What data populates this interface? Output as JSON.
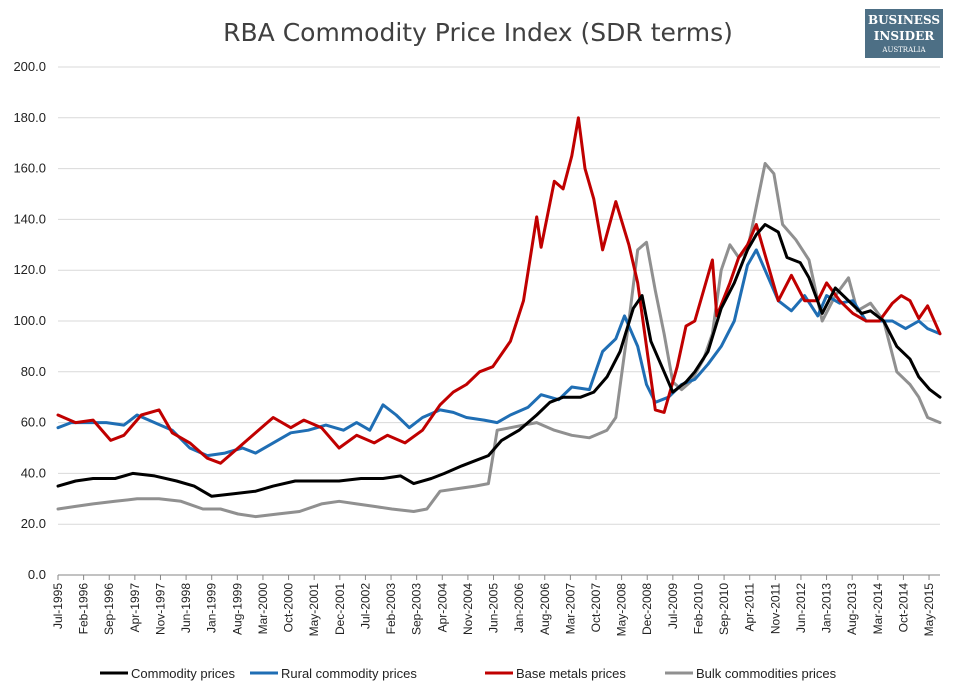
{
  "logo": {
    "line1": "BUSINESS",
    "line2": "INSIDER",
    "line3": "AUSTRALIA"
  },
  "chart_data": {
    "type": "line",
    "title": "RBA Commodity Price Index (SDR terms)",
    "xlabel": "",
    "ylabel": "",
    "ylim": [
      0,
      200
    ],
    "yticks": [
      "0.0",
      "20.0",
      "40.0",
      "60.0",
      "80.0",
      "100.0",
      "120.0",
      "140.0",
      "160.0",
      "180.0",
      "200.0"
    ],
    "xlim": [
      1995.5,
      2015.583
    ],
    "x_tick_labels": [
      "Jul-1995",
      "Feb-1996",
      "Sep-1996",
      "Apr-1997",
      "Nov-1997",
      "Jun-1998",
      "Jan-1999",
      "Aug-1999",
      "Mar-2000",
      "Oct-2000",
      "May-2001",
      "Dec-2001",
      "Jul-2002",
      "Feb-2003",
      "Sep-2003",
      "Apr-2004",
      "Nov-2004",
      "Jun-2005",
      "Jan-2006",
      "Aug-2006",
      "Mar-2007",
      "Oct-2007",
      "May-2008",
      "Dec-2008",
      "Jul-2009",
      "Feb-2010",
      "Sep-2010",
      "Apr-2011",
      "Nov-2011",
      "Jun-2012",
      "Jan-2013",
      "Aug-2013",
      "Mar-2014",
      "Oct-2014",
      "May-2015"
    ],
    "grid": true,
    "legend_position": "bottom",
    "series": [
      {
        "name": "Commodity prices",
        "color": "#000000",
        "points": [
          [
            1995.5,
            35
          ],
          [
            1995.9,
            37
          ],
          [
            1996.3,
            38
          ],
          [
            1996.8,
            38
          ],
          [
            1997.2,
            40
          ],
          [
            1997.7,
            39
          ],
          [
            1998.2,
            37
          ],
          [
            1998.6,
            35
          ],
          [
            1999.0,
            31
          ],
          [
            1999.5,
            32
          ],
          [
            2000.0,
            33
          ],
          [
            2000.4,
            35
          ],
          [
            2000.9,
            37
          ],
          [
            2001.4,
            37
          ],
          [
            2001.9,
            37
          ],
          [
            2002.4,
            38
          ],
          [
            2002.9,
            38
          ],
          [
            2003.3,
            39
          ],
          [
            2003.6,
            36
          ],
          [
            2004.0,
            38
          ],
          [
            2004.3,
            40
          ],
          [
            2004.7,
            43
          ],
          [
            2005.0,
            45
          ],
          [
            2005.3,
            47
          ],
          [
            2005.6,
            53
          ],
          [
            2006.0,
            57
          ],
          [
            2006.4,
            63
          ],
          [
            2006.7,
            68
          ],
          [
            2007.0,
            70
          ],
          [
            2007.4,
            70
          ],
          [
            2007.7,
            72
          ],
          [
            2008.0,
            78
          ],
          [
            2008.3,
            88
          ],
          [
            2008.6,
            105
          ],
          [
            2008.8,
            110
          ],
          [
            2009.0,
            92
          ],
          [
            2009.3,
            80
          ],
          [
            2009.5,
            72
          ],
          [
            2009.8,
            76
          ],
          [
            2010.0,
            80
          ],
          [
            2010.3,
            88
          ],
          [
            2010.6,
            105
          ],
          [
            2010.9,
            115
          ],
          [
            2011.2,
            128
          ],
          [
            2011.4,
            134
          ],
          [
            2011.6,
            138
          ],
          [
            2011.9,
            135
          ],
          [
            2012.1,
            125
          ],
          [
            2012.4,
            123
          ],
          [
            2012.6,
            117
          ],
          [
            2012.9,
            103
          ],
          [
            2013.2,
            113
          ],
          [
            2013.5,
            108
          ],
          [
            2013.8,
            103
          ],
          [
            2014.0,
            104
          ],
          [
            2014.3,
            100
          ],
          [
            2014.6,
            90
          ],
          [
            2014.9,
            85
          ],
          [
            2015.1,
            78
          ],
          [
            2015.35,
            73
          ],
          [
            2015.583,
            70
          ]
        ]
      },
      {
        "name": "Rural commodity prices",
        "color": "#1f6eb4",
        "points": [
          [
            1995.5,
            58
          ],
          [
            1995.8,
            60
          ],
          [
            1996.2,
            60
          ],
          [
            1996.6,
            60
          ],
          [
            1997.0,
            59
          ],
          [
            1997.3,
            63
          ],
          [
            1997.7,
            60
          ],
          [
            1998.1,
            57
          ],
          [
            1998.5,
            50
          ],
          [
            1998.9,
            47
          ],
          [
            1999.3,
            48
          ],
          [
            1999.7,
            50
          ],
          [
            2000.0,
            48
          ],
          [
            2000.4,
            52
          ],
          [
            2000.8,
            56
          ],
          [
            2001.2,
            57
          ],
          [
            2001.6,
            59
          ],
          [
            2002.0,
            57
          ],
          [
            2002.3,
            60
          ],
          [
            2002.6,
            57
          ],
          [
            2002.9,
            67
          ],
          [
            2003.2,
            63
          ],
          [
            2003.5,
            58
          ],
          [
            2003.8,
            62
          ],
          [
            2004.2,
            65
          ],
          [
            2004.5,
            64
          ],
          [
            2004.8,
            62
          ],
          [
            2005.2,
            61
          ],
          [
            2005.5,
            60
          ],
          [
            2005.8,
            63
          ],
          [
            2006.2,
            66
          ],
          [
            2006.5,
            71
          ],
          [
            2006.9,
            69
          ],
          [
            2007.2,
            74
          ],
          [
            2007.6,
            73
          ],
          [
            2007.9,
            88
          ],
          [
            2008.2,
            93
          ],
          [
            2008.4,
            102
          ],
          [
            2008.7,
            90
          ],
          [
            2008.9,
            75
          ],
          [
            2009.1,
            68
          ],
          [
            2009.4,
            70
          ],
          [
            2009.7,
            75
          ],
          [
            2010.0,
            77
          ],
          [
            2010.3,
            83
          ],
          [
            2010.6,
            90
          ],
          [
            2010.9,
            100
          ],
          [
            2011.2,
            122
          ],
          [
            2011.4,
            128
          ],
          [
            2011.6,
            120
          ],
          [
            2011.9,
            108
          ],
          [
            2012.2,
            104
          ],
          [
            2012.5,
            110
          ],
          [
            2012.8,
            102
          ],
          [
            2013.0,
            110
          ],
          [
            2013.3,
            107
          ],
          [
            2013.6,
            108
          ],
          [
            2013.9,
            100
          ],
          [
            2014.2,
            100
          ],
          [
            2014.5,
            100
          ],
          [
            2014.8,
            97
          ],
          [
            2015.1,
            100
          ],
          [
            2015.3,
            97
          ],
          [
            2015.583,
            95
          ]
        ]
      },
      {
        "name": "Base metals prices",
        "color": "#c00000",
        "points": [
          [
            1995.5,
            63
          ],
          [
            1995.9,
            60
          ],
          [
            1996.3,
            61
          ],
          [
            1996.7,
            53
          ],
          [
            1997.0,
            55
          ],
          [
            1997.4,
            63
          ],
          [
            1997.8,
            65
          ],
          [
            1998.1,
            56
          ],
          [
            1998.5,
            52
          ],
          [
            1998.9,
            46
          ],
          [
            1999.2,
            44
          ],
          [
            1999.6,
            50
          ],
          [
            2000.0,
            56
          ],
          [
            2000.4,
            62
          ],
          [
            2000.8,
            58
          ],
          [
            2001.1,
            61
          ],
          [
            2001.5,
            58
          ],
          [
            2001.9,
            50
          ],
          [
            2002.3,
            55
          ],
          [
            2002.7,
            52
          ],
          [
            2003.0,
            55
          ],
          [
            2003.4,
            52
          ],
          [
            2003.8,
            57
          ],
          [
            2004.2,
            67
          ],
          [
            2004.5,
            72
          ],
          [
            2004.8,
            75
          ],
          [
            2005.1,
            80
          ],
          [
            2005.4,
            82
          ],
          [
            2005.8,
            92
          ],
          [
            2006.1,
            108
          ],
          [
            2006.4,
            141
          ],
          [
            2006.5,
            129
          ],
          [
            2006.8,
            155
          ],
          [
            2007.0,
            152
          ],
          [
            2007.2,
            165
          ],
          [
            2007.35,
            180
          ],
          [
            2007.5,
            160
          ],
          [
            2007.7,
            148
          ],
          [
            2007.9,
            128
          ],
          [
            2008.2,
            147
          ],
          [
            2008.5,
            130
          ],
          [
            2008.7,
            115
          ],
          [
            2008.9,
            90
          ],
          [
            2009.1,
            65
          ],
          [
            2009.3,
            64
          ],
          [
            2009.6,
            82
          ],
          [
            2009.8,
            98
          ],
          [
            2010.0,
            100
          ],
          [
            2010.2,
            112
          ],
          [
            2010.4,
            124
          ],
          [
            2010.5,
            102
          ],
          [
            2010.8,
            115
          ],
          [
            2011.0,
            125
          ],
          [
            2011.2,
            130
          ],
          [
            2011.4,
            138
          ],
          [
            2011.6,
            126
          ],
          [
            2011.9,
            108
          ],
          [
            2012.2,
            118
          ],
          [
            2012.5,
            108
          ],
          [
            2012.8,
            108
          ],
          [
            2013.0,
            115
          ],
          [
            2013.3,
            108
          ],
          [
            2013.6,
            103
          ],
          [
            2013.9,
            100
          ],
          [
            2014.2,
            100
          ],
          [
            2014.5,
            107
          ],
          [
            2014.7,
            110
          ],
          [
            2014.9,
            108
          ],
          [
            2015.1,
            101
          ],
          [
            2015.3,
            106
          ],
          [
            2015.583,
            95
          ]
        ]
      },
      {
        "name": "Bulk commodities prices",
        "color": "#909090",
        "points": [
          [
            1995.5,
            26
          ],
          [
            1995.9,
            27
          ],
          [
            1996.3,
            28
          ],
          [
            1996.8,
            29
          ],
          [
            1997.3,
            30
          ],
          [
            1997.8,
            30
          ],
          [
            1998.3,
            29
          ],
          [
            1998.8,
            26
          ],
          [
            1999.2,
            26
          ],
          [
            1999.6,
            24
          ],
          [
            2000.0,
            23
          ],
          [
            2000.5,
            24
          ],
          [
            2001.0,
            25
          ],
          [
            2001.5,
            28
          ],
          [
            2001.9,
            29
          ],
          [
            2002.3,
            28
          ],
          [
            2002.7,
            27
          ],
          [
            2003.1,
            26
          ],
          [
            2003.6,
            25
          ],
          [
            2003.9,
            26
          ],
          [
            2004.2,
            33
          ],
          [
            2004.6,
            34
          ],
          [
            2005.0,
            35
          ],
          [
            2005.3,
            36
          ],
          [
            2005.5,
            57
          ],
          [
            2005.8,
            58
          ],
          [
            2006.1,
            59
          ],
          [
            2006.4,
            60
          ],
          [
            2006.8,
            57
          ],
          [
            2007.2,
            55
          ],
          [
            2007.6,
            54
          ],
          [
            2008.0,
            57
          ],
          [
            2008.2,
            62
          ],
          [
            2008.5,
            100
          ],
          [
            2008.7,
            128
          ],
          [
            2008.9,
            131
          ],
          [
            2009.1,
            112
          ],
          [
            2009.3,
            95
          ],
          [
            2009.5,
            76
          ],
          [
            2009.7,
            73
          ],
          [
            2009.9,
            76
          ],
          [
            2010.2,
            85
          ],
          [
            2010.4,
            95
          ],
          [
            2010.6,
            120
          ],
          [
            2010.8,
            130
          ],
          [
            2011.0,
            125
          ],
          [
            2011.2,
            128
          ],
          [
            2011.4,
            145
          ],
          [
            2011.6,
            162
          ],
          [
            2011.8,
            158
          ],
          [
            2012.0,
            138
          ],
          [
            2012.3,
            132
          ],
          [
            2012.6,
            124
          ],
          [
            2012.9,
            100
          ],
          [
            2013.2,
            110
          ],
          [
            2013.5,
            117
          ],
          [
            2013.7,
            104
          ],
          [
            2014.0,
            107
          ],
          [
            2014.3,
            100
          ],
          [
            2014.6,
            80
          ],
          [
            2014.9,
            75
          ],
          [
            2015.1,
            70
          ],
          [
            2015.3,
            62
          ],
          [
            2015.583,
            60
          ]
        ]
      }
    ]
  }
}
